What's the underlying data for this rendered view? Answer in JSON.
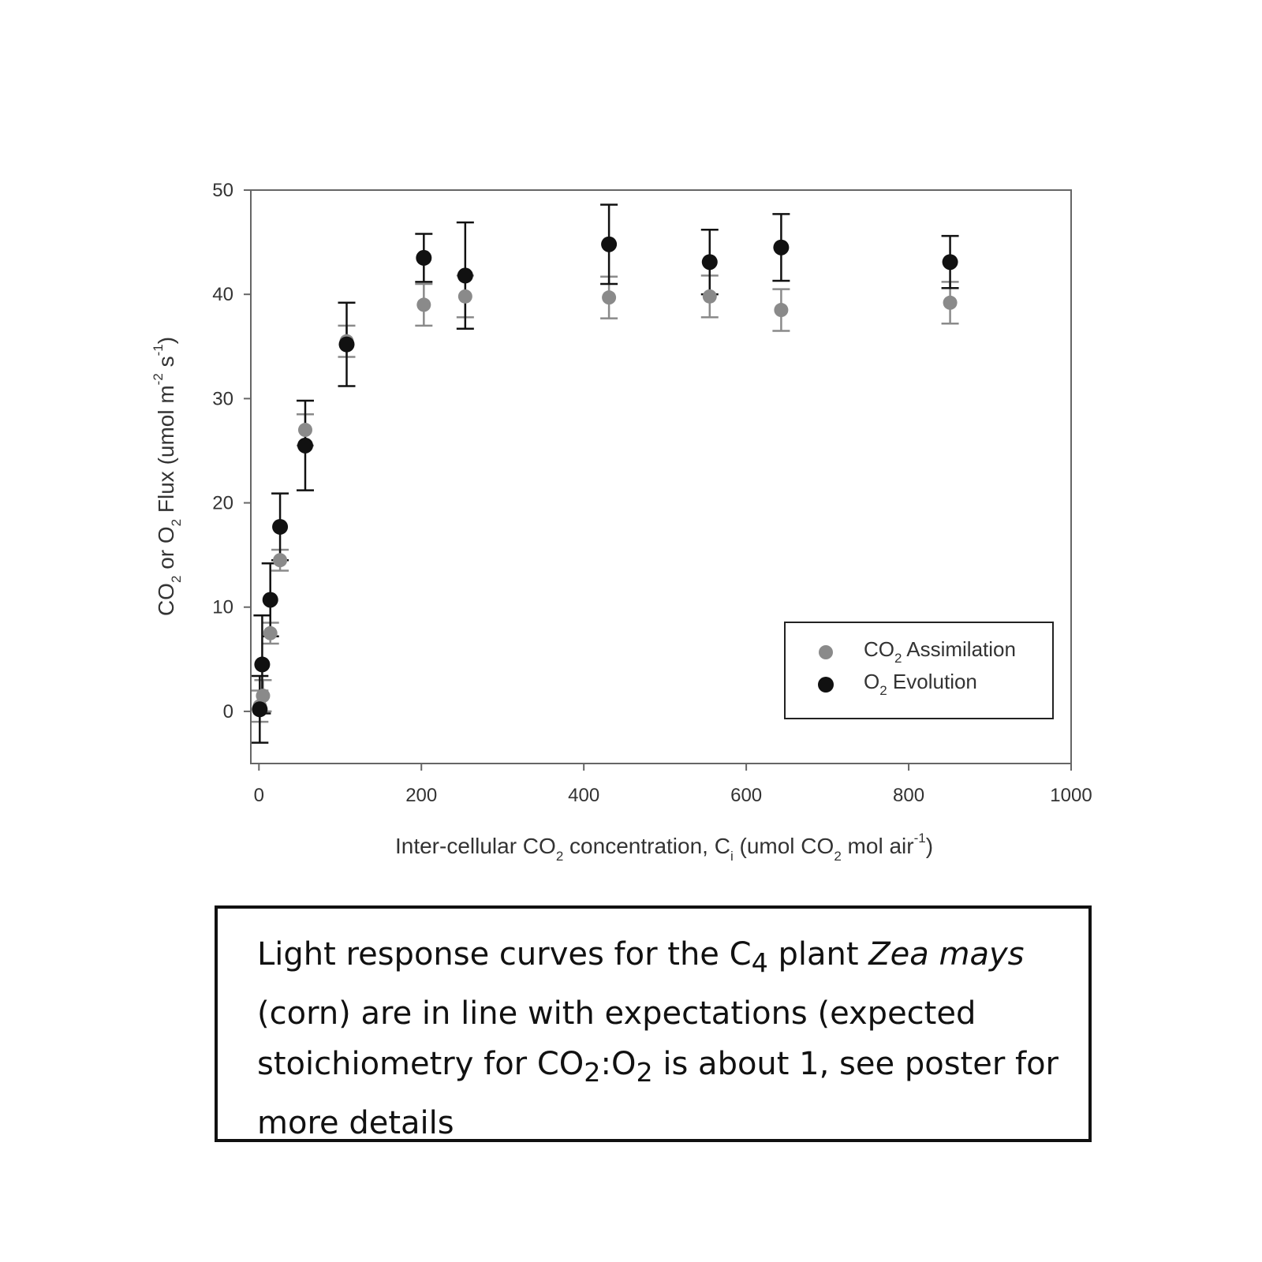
{
  "chart_data": {
    "type": "scatter",
    "xlabel": {
      "prefix": "Inter-cellular CO",
      "sub1": "2",
      "mid": " concentration, C",
      "sub2": "i",
      "mid2": " (umol CO",
      "sub3": "2",
      "mid3": " mol air",
      "sup": "-1",
      "suffix": ")"
    },
    "ylabel": {
      "prefix": "CO",
      "sub1": "2",
      "mid": " or O",
      "sub2": "2",
      "mid2": " Flux (umol m",
      "sup1": "-2",
      "mid3": " s",
      "sup2": "-1",
      "suffix": ")"
    },
    "xlim": [
      -10,
      1000
    ],
    "ylim": [
      -5,
      50
    ],
    "xticks": [
      0,
      200,
      400,
      600,
      800,
      1000
    ],
    "yticks": [
      0,
      10,
      20,
      30,
      40,
      50
    ],
    "legend_position": "lower-right",
    "series": [
      {
        "name": "CO2 Assimilation",
        "legend": {
          "prefix": "CO",
          "sub": "2",
          "suffix": " Assimilation"
        },
        "color": "#8a8a8a",
        "points": [
          {
            "x": 1,
            "y": 0.5,
            "err": 1.5
          },
          {
            "x": 5,
            "y": 1.5,
            "err": 1.5
          },
          {
            "x": 14,
            "y": 7.5,
            "err": 1.0
          },
          {
            "x": 26,
            "y": 14.5,
            "err": 1.0
          },
          {
            "x": 57,
            "y": 27.0,
            "err": 1.5
          },
          {
            "x": 108,
            "y": 35.5,
            "err": 1.5
          },
          {
            "x": 203,
            "y": 39.0,
            "err": 2.0
          },
          {
            "x": 254,
            "y": 39.8,
            "err": 2.0
          },
          {
            "x": 431,
            "y": 39.7,
            "err": 2.0
          },
          {
            "x": 555,
            "y": 39.8,
            "err": 2.0
          },
          {
            "x": 643,
            "y": 38.5,
            "err": 2.0
          },
          {
            "x": 851,
            "y": 39.2,
            "err": 2.0
          }
        ]
      },
      {
        "name": "O2 Evolution",
        "legend": {
          "prefix": "O",
          "sub": "2",
          "suffix": " Evolution"
        },
        "color": "#111111",
        "points": [
          {
            "x": 1,
            "y": 0.2,
            "err": 3.2
          },
          {
            "x": 4,
            "y": 4.5,
            "err": 4.7
          },
          {
            "x": 14,
            "y": 10.7,
            "err": 3.5
          },
          {
            "x": 26,
            "y": 17.7,
            "err": 3.2
          },
          {
            "x": 57,
            "y": 25.5,
            "err": 4.3
          },
          {
            "x": 108,
            "y": 35.2,
            "err": 4.0
          },
          {
            "x": 203,
            "y": 43.5,
            "err": 2.3
          },
          {
            "x": 254,
            "y": 41.8,
            "err": 5.1
          },
          {
            "x": 431,
            "y": 44.8,
            "err": 3.8
          },
          {
            "x": 555,
            "y": 43.1,
            "err": 3.1
          },
          {
            "x": 643,
            "y": 44.5,
            "err": 3.2
          },
          {
            "x": 851,
            "y": 43.1,
            "err": 2.5
          }
        ]
      }
    ]
  },
  "caption": {
    "part1": "Light response curves for the C",
    "sub": "4",
    "part2": " plant ",
    "italic": "Zea mays",
    "part3": " (corn) are in line with expectations (expected stoichiometry for CO",
    "sub2": "2",
    "part4": ":O",
    "sub3": "2",
    "part5": " is about 1, see poster for more details"
  }
}
